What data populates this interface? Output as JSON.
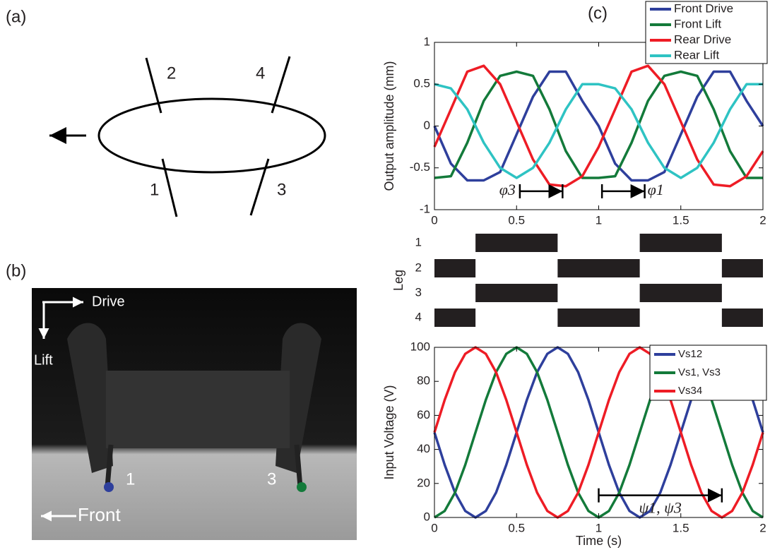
{
  "panel_a": {
    "label": "(a)",
    "legs": [
      "2",
      "4",
      "1",
      "3"
    ]
  },
  "panel_b": {
    "label": "(b)",
    "drive": "Drive",
    "lift": "Lift",
    "front": "Front",
    "leg_1": "1",
    "leg_3": "3"
  },
  "panel_c": {
    "label": "(c)"
  },
  "chart_data": [
    {
      "type": "line",
      "ylabel": "Output amplitude (mm)",
      "x": [
        0,
        0.1,
        0.2,
        0.3,
        0.4,
        0.5,
        0.6,
        0.7,
        0.8,
        0.9,
        1,
        1.1,
        1.2,
        1.3,
        1.4,
        1.5,
        1.6,
        1.7,
        1.8,
        1.9,
        2
      ],
      "xlim": [
        0,
        2
      ],
      "xticks": [
        0,
        0.5,
        1,
        1.5,
        2
      ],
      "ylim": [
        -1,
        1
      ],
      "yticks": [
        -1,
        -0.5,
        0,
        0.5,
        1
      ],
      "legend": "top-right-outside",
      "series": [
        {
          "name": "Front Drive",
          "color": "#2e3f9c",
          "values": [
            0,
            -0.45,
            -0.65,
            -0.65,
            -0.55,
            -0.1,
            0.35,
            0.65,
            0.65,
            0.3,
            0,
            -0.45,
            -0.65,
            -0.65,
            -0.55,
            -0.1,
            0.35,
            0.65,
            0.65,
            0.3,
            0
          ]
        },
        {
          "name": "Front Lift",
          "color": "#137a3a",
          "values": [
            -0.62,
            -0.6,
            -0.2,
            0.3,
            0.6,
            0.65,
            0.6,
            0.2,
            -0.3,
            -0.62,
            -0.62,
            -0.6,
            -0.2,
            0.3,
            0.6,
            0.65,
            0.6,
            0.2,
            -0.3,
            -0.62,
            -0.62
          ]
        },
        {
          "name": "Rear Drive",
          "color": "#ee1c25",
          "values": [
            -0.25,
            0.2,
            0.65,
            0.72,
            0.5,
            0.05,
            -0.4,
            -0.7,
            -0.72,
            -0.6,
            -0.25,
            0.2,
            0.65,
            0.72,
            0.5,
            0.05,
            -0.4,
            -0.7,
            -0.72,
            -0.6,
            -0.3
          ]
        },
        {
          "name": "Rear Lift",
          "color": "#2ec3c3",
          "values": [
            0.5,
            0.45,
            0.2,
            -0.2,
            -0.5,
            -0.62,
            -0.5,
            -0.2,
            0.2,
            0.5,
            0.5,
            0.45,
            0.2,
            -0.2,
            -0.5,
            -0.62,
            -0.5,
            -0.2,
            0.2,
            0.5,
            0.5
          ]
        }
      ],
      "annotations": [
        {
          "text": "φ3",
          "x": [
            0.52,
            0.78
          ],
          "y": -0.78
        },
        {
          "text": "φ1",
          "x": [
            1.02,
            1.28
          ],
          "y": -0.78
        }
      ]
    },
    {
      "type": "gait",
      "ylabel": "Leg",
      "categories": [
        "1",
        "2",
        "3",
        "4"
      ],
      "xlim": [
        0,
        2
      ],
      "color": "#231f20",
      "intervals": [
        [
          [
            0.25,
            0.75
          ],
          [
            1.25,
            1.75
          ]
        ],
        [
          [
            0,
            0.25
          ],
          [
            0.75,
            1.25
          ],
          [
            1.75,
            2
          ]
        ],
        [
          [
            0.25,
            0.75
          ],
          [
            1.25,
            1.75
          ]
        ],
        [
          [
            0,
            0.25
          ],
          [
            0.75,
            1.25
          ],
          [
            1.75,
            2
          ]
        ]
      ]
    },
    {
      "type": "line",
      "ylabel": "Input Voltage (V)",
      "xlabel": "Time (s)",
      "x": [
        0,
        0.0625,
        0.125,
        0.1875,
        0.25,
        0.3125,
        0.375,
        0.4375,
        0.5,
        0.5625,
        0.625,
        0.6875,
        0.75,
        0.8125,
        0.875,
        0.9375,
        1,
        1.0625,
        1.125,
        1.1875,
        1.25,
        1.3125,
        1.375,
        1.4375,
        1.5,
        1.5625,
        1.625,
        1.6875,
        1.75,
        1.8125,
        1.875,
        1.9375,
        2
      ],
      "xlim": [
        0,
        2
      ],
      "xticks": [
        0,
        0.5,
        1,
        1.5,
        2
      ],
      "ylim": [
        0,
        100
      ],
      "yticks": [
        0,
        20,
        40,
        60,
        80,
        100
      ],
      "legend": "top-right",
      "series": [
        {
          "name": "Vs12",
          "color": "#2e3f9c",
          "values": [
            50,
            30.9,
            14.6,
            3.8,
            0,
            3.8,
            14.6,
            30.9,
            50,
            69.1,
            85.4,
            96.2,
            100,
            96.2,
            85.4,
            69.1,
            50,
            30.9,
            14.6,
            3.8,
            0,
            3.8,
            14.6,
            30.9,
            50,
            69.1,
            85.4,
            96.2,
            100,
            96.2,
            85.4,
            69.1,
            50
          ]
        },
        {
          "name": "Vs1, Vs3",
          "color": "#137a3a",
          "values": [
            0,
            3.8,
            14.6,
            30.9,
            50,
            69.1,
            85.4,
            96.2,
            100,
            96.2,
            85.4,
            69.1,
            50,
            30.9,
            14.6,
            3.8,
            0,
            3.8,
            14.6,
            30.9,
            50,
            69.1,
            85.4,
            96.2,
            100,
            96.2,
            85.4,
            69.1,
            50,
            30.9,
            14.6,
            3.8,
            0
          ]
        },
        {
          "name": "Vs34",
          "color": "#ee1c25",
          "values": [
            50,
            69.1,
            85.4,
            96.2,
            100,
            96.2,
            85.4,
            69.1,
            50,
            30.9,
            14.6,
            3.8,
            0,
            3.8,
            14.6,
            30.9,
            50,
            69.1,
            85.4,
            96.2,
            100,
            96.2,
            85.4,
            69.1,
            50,
            30.9,
            14.6,
            3.8,
            0,
            3.8,
            14.6,
            30.9,
            50
          ]
        }
      ],
      "annotations": [
        {
          "text": "ψ1, ψ3",
          "x": [
            1,
            1.75
          ],
          "y": 13
        }
      ]
    }
  ]
}
